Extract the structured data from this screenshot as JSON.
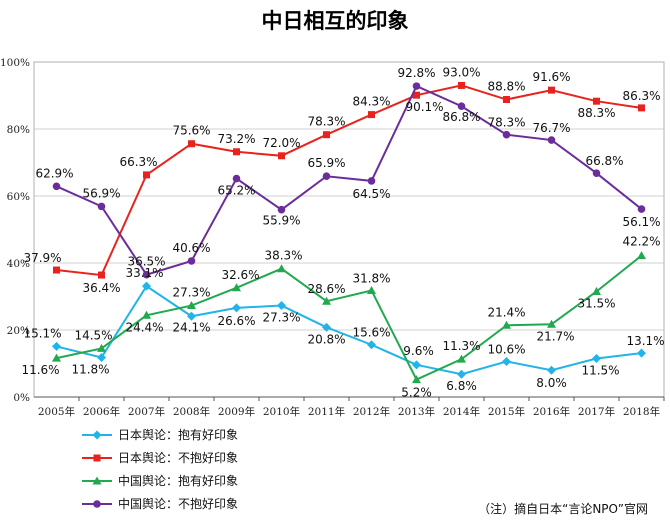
{
  "chart_data": {
    "type": "line",
    "title": "中日相互的印象",
    "categories": [
      "2005年",
      "2006年",
      "2007年",
      "2008年",
      "2009年",
      "2010年",
      "2011年",
      "2012年",
      "2013年",
      "2014年",
      "2015年",
      "2016年",
      "2017年",
      "2018年"
    ],
    "ylim": [
      0,
      100
    ],
    "yticks": [
      "0%",
      "20%",
      "40%",
      "60%",
      "80%",
      "100%"
    ],
    "grid": true,
    "legend_position": "bottom-left",
    "series": [
      {
        "name": "日本舆论：抱有好印象",
        "color": "#20b4e8",
        "marker": "diamond",
        "values": [
          15.1,
          11.8,
          33.1,
          24.1,
          26.6,
          27.3,
          20.8,
          15.6,
          9.6,
          6.8,
          10.6,
          8.0,
          11.5,
          13.1
        ],
        "labels": [
          "15.1%",
          "11.8%",
          "33.1%",
          "24.1%",
          "26.6%",
          "27.3%",
          "20.8%",
          "15.6%",
          "9.6%",
          "6.8%",
          "10.6%",
          "8.0%",
          "11.5%",
          "13.1%"
        ]
      },
      {
        "name": "日本舆论：不抱好印象",
        "color": "#e8231e",
        "marker": "square",
        "values": [
          37.9,
          36.4,
          66.3,
          75.6,
          73.2,
          72.0,
          78.3,
          84.3,
          90.1,
          93.0,
          88.8,
          91.6,
          88.3,
          86.3
        ],
        "labels": [
          "37.9%",
          "36.4%",
          "66.3%",
          "75.6%",
          "73.2%",
          "72.0%",
          "78.3%",
          "84.3%",
          "90.1%",
          "93.0%",
          "88.8%",
          "91.6%",
          "88.3%",
          "86.3%"
        ]
      },
      {
        "name": "中国舆论：抱有好印象",
        "color": "#22a84e",
        "marker": "triangle",
        "values": [
          11.6,
          14.5,
          24.4,
          27.3,
          32.6,
          38.3,
          28.6,
          31.8,
          5.2,
          11.3,
          21.4,
          21.7,
          31.5,
          42.2
        ],
        "labels": [
          "11.6%",
          "14.5%",
          "24.4%",
          "27.3%",
          "32.6%",
          "38.3%",
          "28.6%",
          "31.8%",
          "5.2%",
          "11.3%",
          "21.4%",
          "21.7%",
          "31.5%",
          "42.2%"
        ]
      },
      {
        "name": "中国舆论：不抱好印象",
        "color": "#6a2d9a",
        "marker": "circle",
        "values": [
          62.9,
          56.9,
          36.5,
          40.6,
          65.2,
          55.9,
          65.9,
          64.5,
          92.8,
          86.8,
          78.3,
          76.7,
          66.8,
          56.1
        ],
        "labels": [
          "62.9%",
          "56.9%",
          "36.5%",
          "40.6%",
          "65.2%",
          "55.9%",
          "65.9%",
          "64.5%",
          "92.8%",
          "86.8%",
          "78.3%",
          "76.7%",
          "66.8%",
          "56.1%"
        ]
      }
    ],
    "source": "（注）摘自日本“言论NPO”官网"
  }
}
